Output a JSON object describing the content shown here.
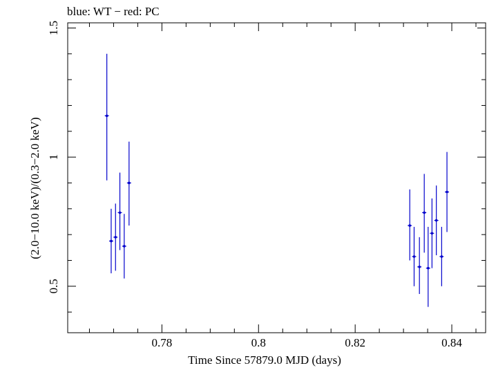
{
  "chart_data": {
    "type": "scatter",
    "title": "blue: WT − red: PC",
    "xlabel": "Time Since 57879.0 MJD (days)",
    "ylabel": "(2.0−10.0 keV)/(0.3−2.0 keV)",
    "xlim": [
      0.7605,
      0.847
    ],
    "ylim": [
      0.32,
      1.52
    ],
    "xticks": [
      {
        "value": 0.78,
        "label": "0.78"
      },
      {
        "value": 0.8,
        "label": "0.8"
      },
      {
        "value": 0.82,
        "label": "0.82"
      },
      {
        "value": 0.84,
        "label": "0.84"
      }
    ],
    "yticks": [
      {
        "value": 0.5,
        "label": "0.5"
      },
      {
        "value": 1.0,
        "label": "1"
      },
      {
        "value": 1.5,
        "label": "1.5"
      }
    ],
    "series": [
      {
        "name": "WT",
        "color": "#0000cc",
        "points": [
          {
            "x": 0.7686,
            "y": 1.16,
            "lo": 0.91,
            "hi": 1.4
          },
          {
            "x": 0.7695,
            "y": 0.675,
            "lo": 0.55,
            "hi": 0.8
          },
          {
            "x": 0.7704,
            "y": 0.69,
            "lo": 0.56,
            "hi": 0.82
          },
          {
            "x": 0.7713,
            "y": 0.785,
            "lo": 0.64,
            "hi": 0.94
          },
          {
            "x": 0.7722,
            "y": 0.655,
            "lo": 0.53,
            "hi": 0.78
          },
          {
            "x": 0.7732,
            "y": 0.9,
            "lo": 0.735,
            "hi": 1.06
          },
          {
            "x": 0.8313,
            "y": 0.735,
            "lo": 0.6,
            "hi": 0.875
          },
          {
            "x": 0.8322,
            "y": 0.615,
            "lo": 0.5,
            "hi": 0.73
          },
          {
            "x": 0.8333,
            "y": 0.575,
            "lo": 0.47,
            "hi": 0.69
          },
          {
            "x": 0.8343,
            "y": 0.785,
            "lo": 0.63,
            "hi": 0.935
          },
          {
            "x": 0.8351,
            "y": 0.57,
            "lo": 0.42,
            "hi": 0.73
          },
          {
            "x": 0.8359,
            "y": 0.705,
            "lo": 0.57,
            "hi": 0.84
          },
          {
            "x": 0.8368,
            "y": 0.755,
            "lo": 0.62,
            "hi": 0.89
          },
          {
            "x": 0.8379,
            "y": 0.615,
            "lo": 0.5,
            "hi": 0.73
          },
          {
            "x": 0.839,
            "y": 0.865,
            "lo": 0.71,
            "hi": 1.02
          }
        ]
      }
    ]
  }
}
